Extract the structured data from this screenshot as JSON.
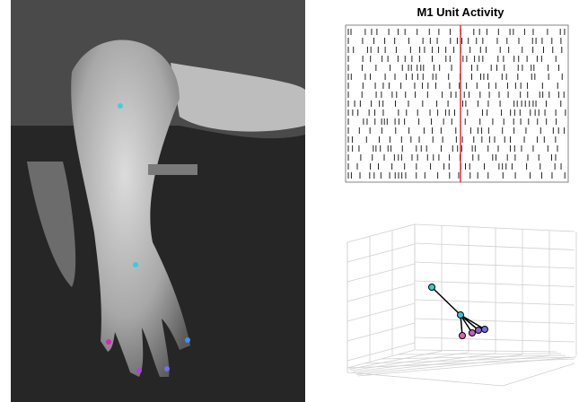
{
  "panel": {
    "title": "M1 Unit Activity"
  }
}
